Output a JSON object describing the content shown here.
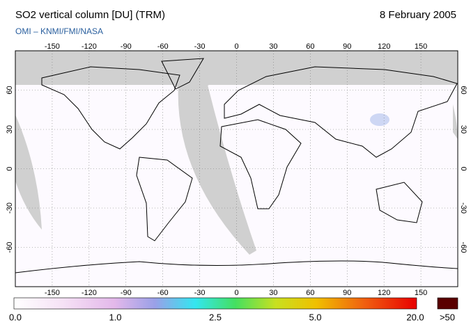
{
  "header": {
    "title": "SO2 vertical column [DU] (TRM)",
    "date": "8 February 2005",
    "source": "OMI  –  KNMI/FMI/NASA"
  },
  "map": {
    "longitude_ticks": [
      -150,
      -120,
      -90,
      -60,
      -30,
      0,
      30,
      60,
      90,
      120,
      150
    ],
    "latitude_ticks": [
      60,
      30,
      0,
      -30,
      -60
    ]
  },
  "colorbar": {
    "labels": [
      "0.0",
      "1.0",
      "2.5",
      "5.0",
      "20.0"
    ],
    "overflow_label": ">50"
  }
}
